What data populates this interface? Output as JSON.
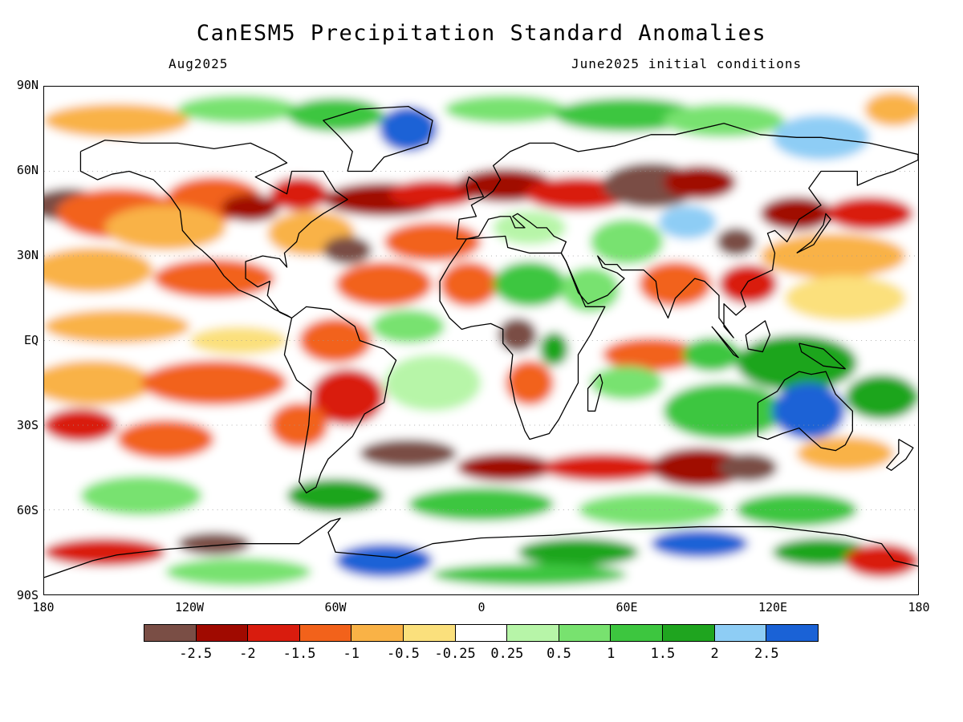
{
  "title": "CanESM5 Precipitation Standard Anomalies",
  "subtitle_left": "Aug2025",
  "subtitle_right": "June2025 initial conditions",
  "y_ticks": [
    "90N",
    "60N",
    "30N",
    "EQ",
    "30S",
    "60S",
    "90S"
  ],
  "x_ticks": [
    "180",
    "120W",
    "60W",
    "0",
    "60E",
    "120E",
    "180"
  ],
  "colorbar": {
    "colors": [
      "#7a4e45",
      "#a00a00",
      "#d91c0e",
      "#f2621b",
      "#f9b246",
      "#fbe07c",
      "#ffffff",
      "#b7f5a8",
      "#78e26f",
      "#3dc63f",
      "#1fa51f",
      "#8ecdf5",
      "#1a62d6"
    ],
    "labels": [
      "-2.5",
      "-2",
      "-1.5",
      "-1",
      "-0.5",
      "-0.25",
      "0.25",
      "0.5",
      "1",
      "1.5",
      "2",
      "2.5"
    ]
  },
  "map_colors": {
    "coastline": "#000000",
    "gridline": "#9a9a9a"
  }
}
